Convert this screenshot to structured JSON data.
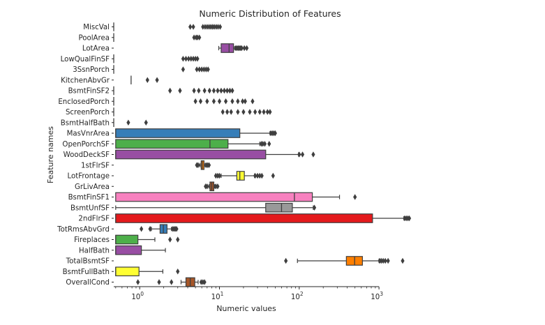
{
  "chart_data": {
    "type": "boxplot",
    "orientation": "horizontal",
    "title": "Numeric Distribution of Features",
    "xlabel": "Numeric values",
    "ylabel": "Feature names",
    "x_scale": "log",
    "xlim": [
      0.5,
      1500
    ],
    "x_ticks": [
      {
        "value": 1,
        "base": "10",
        "exp": "0"
      },
      {
        "value": 10,
        "base": "10",
        "exp": "1"
      },
      {
        "value": 100,
        "base": "10",
        "exp": "2"
      },
      {
        "value": 1000,
        "base": "10",
        "exp": "3"
      }
    ],
    "grid": false,
    "legend": "none",
    "categories": [
      {
        "name": "MiscVal",
        "color": "#377eb8",
        "q1": 0,
        "med": 0,
        "q3": 0,
        "whislo": 0,
        "whishi": 0,
        "fliers": [
          4.3,
          4.7,
          6.2,
          6.6,
          7.0,
          7.4,
          7.8,
          8.2,
          8.6,
          9.1,
          9.6,
          10.2
        ]
      },
      {
        "name": "PoolArea",
        "color": "#4daf4a",
        "q1": 0,
        "med": 0,
        "q3": 0,
        "whislo": 0,
        "whishi": 0,
        "fliers": [
          4.8,
          5.1,
          5.3,
          5.6
        ]
      },
      {
        "name": "LotArea",
        "color": "#984ea3",
        "q1": 10.5,
        "med": 13.2,
        "q3": 15.0,
        "whislo": 9.8,
        "whishi": 15.5,
        "fliers": [
          16.0,
          16.6,
          17.2,
          17.8,
          18.4,
          19.0,
          20.5,
          22.0
        ]
      },
      {
        "name": "LowQualFinSF",
        "color": "#ff7f00",
        "q1": 0,
        "med": 0,
        "q3": 0,
        "whislo": 0,
        "whishi": 0,
        "fliers": [
          3.5,
          3.8,
          4.1,
          4.4,
          4.7,
          5.0,
          5.3
        ]
      },
      {
        "name": "3SsnPorch",
        "color": "#ffff33",
        "q1": 0,
        "med": 0,
        "q3": 0,
        "whislo": 0,
        "whishi": 0,
        "fliers": [
          3.5,
          5.2,
          5.6,
          6.0,
          6.4,
          6.8,
          7.2
        ]
      },
      {
        "name": "KitchenAbvGr",
        "color": "#a65628",
        "q1": 0.78,
        "med": 0.78,
        "q3": 0.78,
        "whislo": 0.78,
        "whishi": 0.78,
        "fliers": [
          1.25,
          1.65
        ]
      },
      {
        "name": "BsmtFinSF2",
        "color": "#f781bf",
        "q1": 0,
        "med": 0,
        "q3": 0,
        "whislo": 0,
        "whishi": 0,
        "fliers": [
          2.4,
          3.2,
          4.8,
          5.5,
          6.5,
          7.5,
          8.5,
          9.5,
          10.5,
          11.5,
          12.5,
          13.5,
          14.5
        ]
      },
      {
        "name": "EnclosedPorch",
        "color": "#999999",
        "q1": 0,
        "med": 0,
        "q3": 0,
        "whislo": 0,
        "whishi": 0,
        "fliers": [
          5.0,
          5.8,
          7.0,
          8.5,
          10.0,
          12.0,
          14.5,
          17.0,
          19.5,
          21.0,
          26.0
        ]
      },
      {
        "name": "ScreenPorch",
        "color": "#e41a1c",
        "q1": 0,
        "med": 0,
        "q3": 0,
        "whislo": 0,
        "whishi": 0,
        "fliers": [
          11.0,
          12.5,
          14.0,
          17.0,
          20.0,
          24.0,
          28.0,
          32.0,
          36.0,
          40.0,
          43.0
        ]
      },
      {
        "name": "BsmtHalfBath",
        "color": "#377eb8",
        "q1": 0,
        "med": 0,
        "q3": 0,
        "whislo": 0,
        "whishi": 0,
        "fliers": [
          0.72,
          1.2
        ]
      },
      {
        "name": "MasVnrArea",
        "color": "#377eb8",
        "q1": 0.5,
        "med": 0.5,
        "q3": 18.0,
        "whislo": 0.5,
        "whishi": 43.0,
        "fliers": [
          44.0,
          46.0,
          48.0,
          50.0
        ]
      },
      {
        "name": "OpenPorchSF",
        "color": "#4daf4a",
        "q1": 0.5,
        "med": 7.6,
        "q3": 12.8,
        "whislo": 0.5,
        "whishi": 32.0,
        "fliers": [
          33.5,
          35.0,
          37.0,
          42.0
        ]
      },
      {
        "name": "WoodDeckSF",
        "color": "#984ea3",
        "q1": 0.5,
        "med": 0.5,
        "q3": 38.0,
        "whislo": 0.5,
        "whishi": 98.0,
        "fliers": [
          100.0,
          110.0,
          150.0
        ]
      },
      {
        "name": "1stFlrSF",
        "color": "#ff7f00",
        "q1": 5.9,
        "med": 6.1,
        "q3": 6.4,
        "whislo": 5.7,
        "whishi": 6.6,
        "fliers": [
          5.2,
          5.4,
          6.8,
          7.1,
          7.4
        ]
      },
      {
        "name": "LotFrontage",
        "color": "#ffff33",
        "q1": 16.5,
        "med": 18.0,
        "q3": 20.5,
        "whislo": 10.5,
        "whishi": 27.5,
        "fliers": [
          9.0,
          9.5,
          10.0,
          28.0,
          30.0,
          32.0,
          34.0,
          47.0
        ]
      },
      {
        "name": "GrLivArea",
        "color": "#a65628",
        "q1": 7.6,
        "med": 8.0,
        "q3": 8.5,
        "whislo": 7.4,
        "whishi": 8.7,
        "fliers": [
          6.7,
          7.0,
          9.0,
          9.5
        ]
      },
      {
        "name": "BsmtFinSF1",
        "color": "#f781bf",
        "q1": 0.5,
        "med": 87.0,
        "q3": 146.0,
        "whislo": 0.5,
        "whishi": 320.0,
        "fliers": [
          500.0
        ]
      },
      {
        "name": "BsmtUnfSF",
        "color": "#999999",
        "q1": 38.0,
        "med": 60.0,
        "q3": 82.0,
        "whislo": 0.5,
        "whishi": 150.0,
        "fliers": [
          155.0
        ]
      },
      {
        "name": "2ndFlrSF",
        "color": "#e41a1c",
        "q1": 0.5,
        "med": 0.5,
        "q3": 830.0,
        "whislo": 0.5,
        "whishi": 2050.0,
        "fliers": [
          2100.0,
          2200.0,
          2300.0,
          2400.0
        ]
      },
      {
        "name": "TotRmsAbvGrd",
        "color": "#377eb8",
        "q1": 1.8,
        "med": 1.98,
        "q3": 2.2,
        "whislo": 1.4,
        "whishi": 2.5,
        "fliers": [
          1.05,
          1.35,
          2.6,
          2.7,
          2.8,
          2.9
        ]
      },
      {
        "name": "Fireplaces",
        "color": "#4daf4a",
        "q1": 0.5,
        "med": 0.5,
        "q3": 0.95,
        "whislo": 0.5,
        "whishi": 1.55,
        "fliers": [
          2.4,
          3.0
        ]
      },
      {
        "name": "HalfBath",
        "color": "#984ea3",
        "q1": 0.5,
        "med": 0.5,
        "q3": 1.05,
        "whislo": 0.5,
        "whishi": 2.1,
        "fliers": []
      },
      {
        "name": "TotalBsmtSF",
        "color": "#ff7f00",
        "q1": 390.0,
        "med": 495.0,
        "q3": 620.0,
        "whislo": 95.0,
        "whishi": 1000.0,
        "fliers": [
          68.0,
          1020.0,
          1070.0,
          1130.0,
          1200.0,
          1300.0,
          1980.0
        ]
      },
      {
        "name": "BsmtFullBath",
        "color": "#ffff33",
        "q1": 0.5,
        "med": 0.5,
        "q3": 0.98,
        "whislo": 0.5,
        "whishi": 1.95,
        "fliers": [
          3.0
        ]
      },
      {
        "name": "OverallCond",
        "color": "#a65628",
        "q1": 3.8,
        "med": 4.3,
        "q3": 4.9,
        "whislo": 3.3,
        "whishi": 5.4,
        "fliers": [
          0.95,
          1.75,
          2.5,
          5.9,
          6.2,
          6.5
        ]
      }
    ]
  }
}
